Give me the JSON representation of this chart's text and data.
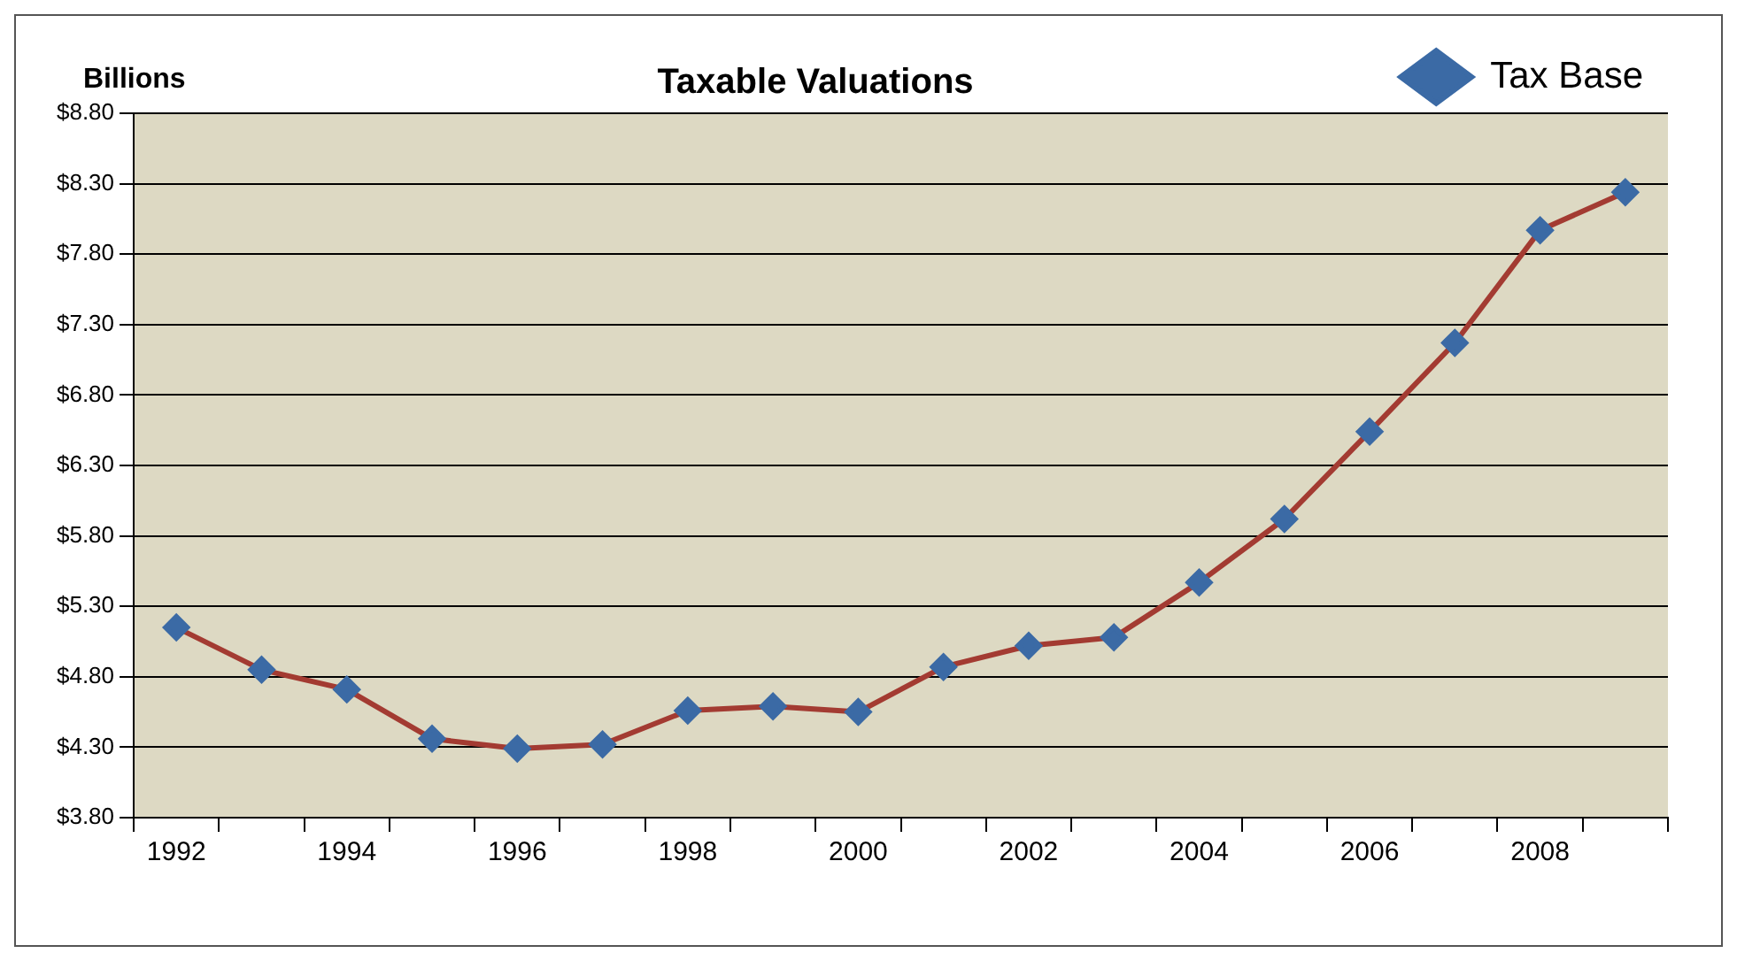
{
  "chart_data": {
    "type": "line",
    "title": "Taxable Valuations",
    "ylabel": "Billions",
    "categories": [
      "1992",
      null,
      "1994",
      null,
      "1996",
      null,
      "1998",
      null,
      "2000",
      null,
      "2002",
      null,
      "2004",
      null,
      "2006",
      null,
      "2008",
      null
    ],
    "series": [
      {
        "name": "Tax Base",
        "color": "#a33b32",
        "colors": [
          "#3b6aa5",
          "#3b6aa5",
          "#3b6aa5",
          "#3b6aa5",
          "#3b6aa5",
          "#3b6aa5",
          "#3b6aa5",
          "#3b6aa5",
          "#3b6aa5",
          "#3b6aa5",
          "#3b6aa5",
          "#3b6aa5",
          "#3b6aa5",
          "#3b6aa5",
          "#3b6aa5",
          "#3b6aa5",
          "#3b6aa5",
          "#3b6aa5"
        ],
        "values": [
          5.15,
          4.85,
          4.71,
          4.36,
          4.29,
          4.32,
          4.56,
          4.59,
          4.55,
          4.87,
          5.02,
          5.08,
          5.47,
          5.92,
          6.54,
          7.17,
          7.97,
          8.24
        ]
      }
    ],
    "ylim": [
      3.8,
      8.8
    ],
    "yticks": [
      {
        "value": 3.8,
        "label": "$3.80"
      },
      {
        "value": 4.3,
        "label": "$4.30"
      },
      {
        "value": 4.8,
        "label": "$4.80"
      },
      {
        "value": 5.3,
        "label": "$5.30"
      },
      {
        "value": 5.8,
        "label": "$5.80"
      },
      {
        "value": 6.3,
        "label": "$6.30"
      },
      {
        "value": 6.8,
        "label": "$6.80"
      },
      {
        "value": 7.3,
        "label": "$7.30"
      },
      {
        "value": 7.8,
        "label": "$7.80"
      },
      {
        "value": 8.3,
        "label": "$8.30"
      },
      {
        "value": 8.8,
        "label": "$8.80"
      }
    ],
    "grid": "y",
    "legend": "top right",
    "marker": "diamond",
    "line_style": "solid"
  }
}
